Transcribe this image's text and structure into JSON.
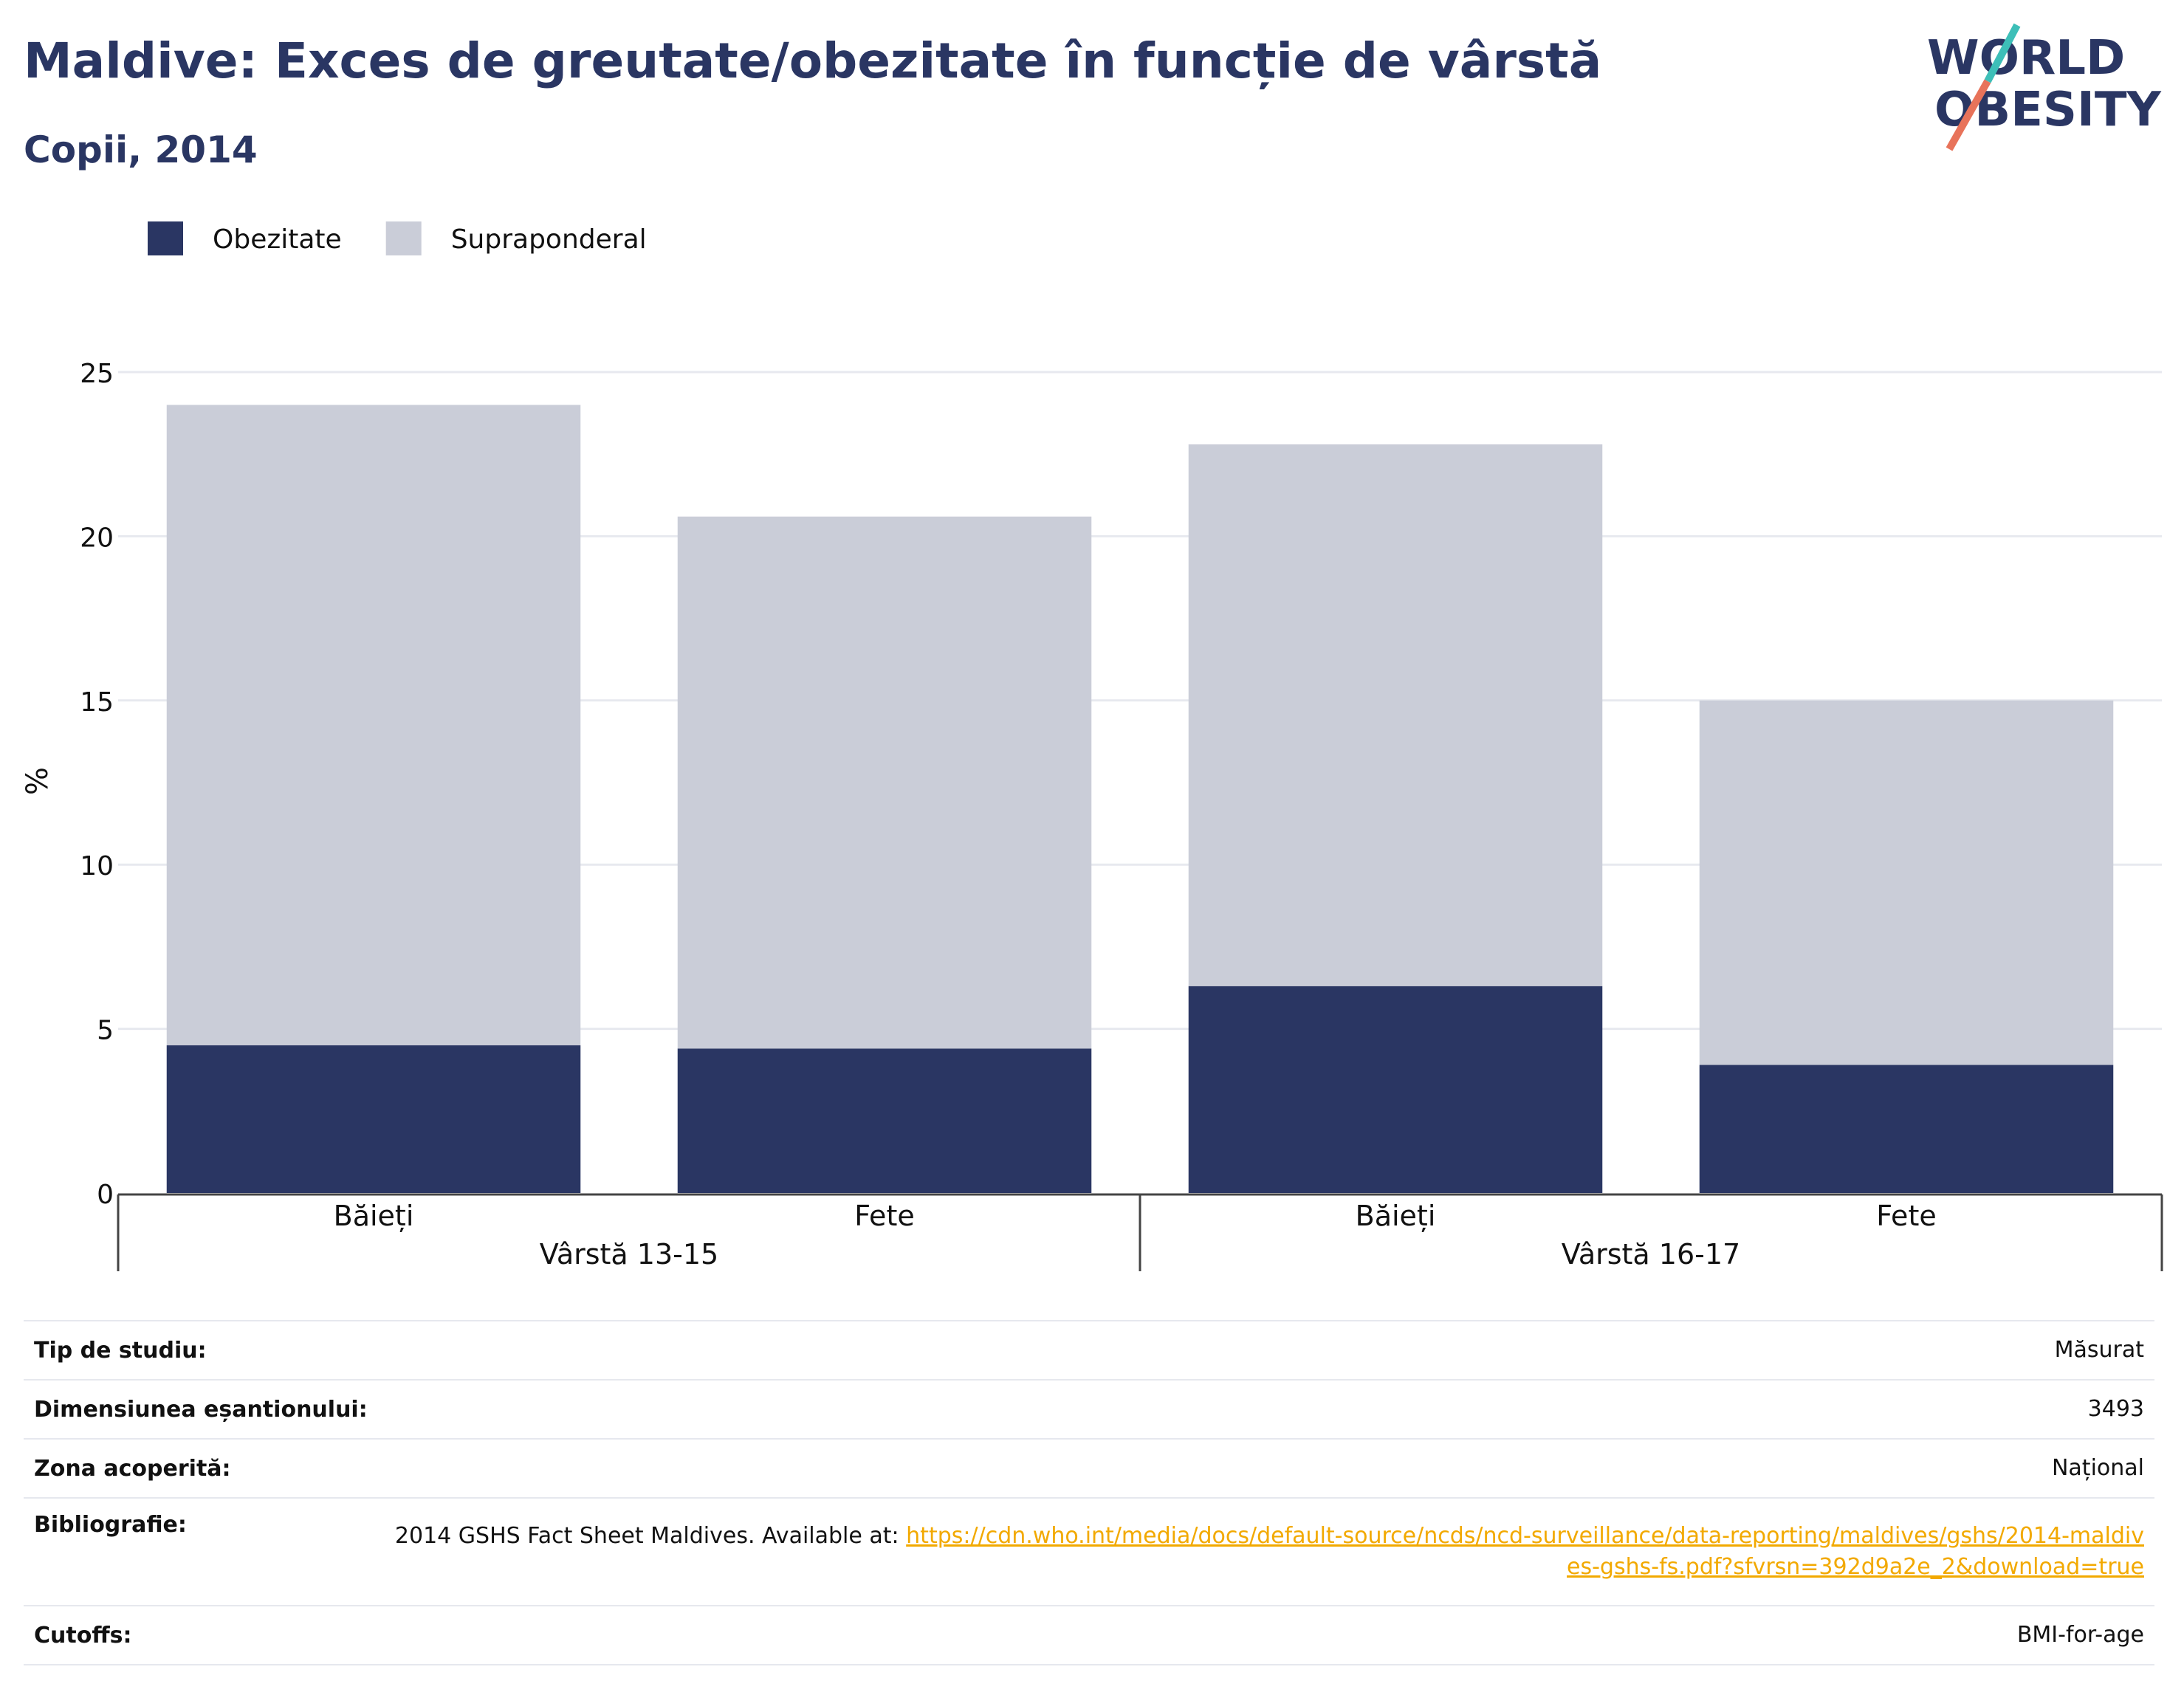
{
  "header": {
    "title": "Maldive: Exces de greutate/obezitate în funcție de vârstă",
    "subtitle": "Copii, 2014"
  },
  "logo": {
    "line1": "WORLD",
    "line2": "OBESITY",
    "colors": {
      "text": "#2a3663",
      "slash_top": "#3dbfb8",
      "slash_bottom": "#e8735a"
    }
  },
  "chart_data": {
    "type": "bar",
    "stacked": true,
    "categories": [
      "Băieți",
      "Fete",
      "Băieți",
      "Fete"
    ],
    "groups": [
      {
        "label": "Vârstă 13-15",
        "categories": [
          0,
          1
        ]
      },
      {
        "label": "Vârstă 16-17",
        "categories": [
          2,
          3
        ]
      }
    ],
    "series": [
      {
        "name": "Obezitate",
        "color": "#2a3663",
        "values": [
          4.5,
          4.4,
          6.3,
          3.9
        ]
      },
      {
        "name": "Supraponderal",
        "color": "#cacdd8",
        "values": [
          19.5,
          16.2,
          16.5,
          11.1
        ]
      }
    ],
    "ylabel": "%",
    "ylim": [
      0,
      25
    ],
    "yticks": [
      0,
      5,
      10,
      15,
      20,
      25
    ],
    "grid": true,
    "legend": "top-left"
  },
  "info": {
    "rows": [
      {
        "label": "Tip de studiu:",
        "value": "Măsurat"
      },
      {
        "label": "Dimensiunea eșantionului:",
        "value": "3493"
      },
      {
        "label": "Zona acoperită:",
        "value": "Național"
      },
      {
        "label": "Bibliografie:",
        "value": "2014 GSHS Fact Sheet Maldives. Available at: ",
        "link": "https://cdn.who.int/media/docs/default-source/ncds/ncd-surveillance/data-reporting/maldives/gshs/2014-maldives-gshs-fs.pdf?sfvrsn=392d9a2e_2&download=true"
      },
      {
        "label": "Cutoffs:",
        "value": "BMI-for-age"
      }
    ]
  }
}
